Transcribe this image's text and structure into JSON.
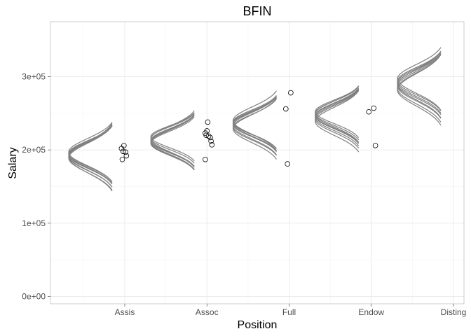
{
  "chart_data": {
    "type": "scatter",
    "title": "BFIN",
    "xlabel": "Position",
    "ylabel": "Salary",
    "categories": [
      "Assis",
      "Assoc",
      "Full",
      "Endow",
      "Disting"
    ],
    "y_ticks": [
      0,
      100000,
      200000,
      300000
    ],
    "y_tick_labels": [
      "0e+00",
      "1e+05",
      "2e+05",
      "3e+05"
    ],
    "ylim": [
      -10000,
      375000
    ],
    "grid": true,
    "point_style": "open circle",
    "points": [
      {
        "category": "Assis",
        "x_offset": -0.04,
        "y": 202000
      },
      {
        "category": "Assis",
        "x_offset": -0.01,
        "y": 206000
      },
      {
        "category": "Assis",
        "x_offset": -0.02,
        "y": 198000
      },
      {
        "category": "Assis",
        "x_offset": 0.01,
        "y": 197000
      },
      {
        "category": "Assis",
        "x_offset": 0.02,
        "y": 192000
      },
      {
        "category": "Assis",
        "x_offset": -0.03,
        "y": 187000
      },
      {
        "category": "Assoc",
        "x_offset": 0.01,
        "y": 238000
      },
      {
        "category": "Assoc",
        "x_offset": 0.0,
        "y": 226000
      },
      {
        "category": "Assoc",
        "x_offset": -0.02,
        "y": 223000
      },
      {
        "category": "Assoc",
        "x_offset": -0.01,
        "y": 220000
      },
      {
        "category": "Assoc",
        "x_offset": 0.02,
        "y": 219000
      },
      {
        "category": "Assoc",
        "x_offset": 0.04,
        "y": 217000
      },
      {
        "category": "Assoc",
        "x_offset": 0.05,
        "y": 212000
      },
      {
        "category": "Assoc",
        "x_offset": 0.06,
        "y": 207000
      },
      {
        "category": "Assoc",
        "x_offset": -0.02,
        "y": 187000
      },
      {
        "category": "Full",
        "x_offset": 0.02,
        "y": 278000
      },
      {
        "category": "Full",
        "x_offset": -0.04,
        "y": 256000
      },
      {
        "category": "Full",
        "x_offset": -0.02,
        "y": 181000
      },
      {
        "category": "Endow",
        "x_offset": 0.03,
        "y": 257000
      },
      {
        "category": "Endow",
        "x_offset": -0.03,
        "y": 252000
      },
      {
        "category": "Endow",
        "x_offset": 0.05,
        "y": 206000
      }
    ],
    "posterior_draws": {
      "description_units": "normal density curves drawn sideways to the left of each category; mean and sd in salary units",
      "color": "#808080",
      "groups": [
        {
          "category": "Assis",
          "means": [
            193000,
            191000,
            195000,
            189000,
            197000,
            192000,
            190000,
            194000
          ],
          "sds": [
            18000,
            19000,
            17500,
            20000,
            18500,
            19500,
            21000,
            18000
          ]
        },
        {
          "category": "Assoc",
          "means": [
            213000,
            211000,
            216000,
            209000,
            215000,
            212000,
            218000,
            210000
          ],
          "sds": [
            16000,
            17000,
            15500,
            16500,
            17500,
            16000,
            15000,
            17000
          ]
        },
        {
          "category": "Full",
          "means": [
            236000,
            233000,
            238000,
            231000,
            240000,
            235000,
            229000,
            237000
          ],
          "sds": [
            17000,
            18000,
            16500,
            17500,
            18500,
            17000,
            19000,
            16000
          ]
        },
        {
          "category": "Endow",
          "means": [
            247000,
            244000,
            250000,
            242000,
            252000,
            246000,
            239000,
            249000
          ],
          "sds": [
            17000,
            17500,
            16500,
            18000,
            16000,
            17000,
            19000,
            17500
          ]
        },
        {
          "category": "Disting",
          "means": [
            290000,
            287000,
            294000,
            284000,
            297000,
            289000,
            282000,
            292000
          ],
          "sds": [
            19000,
            20000,
            18500,
            21000,
            19500,
            20500,
            22000,
            19000
          ]
        }
      ]
    }
  }
}
